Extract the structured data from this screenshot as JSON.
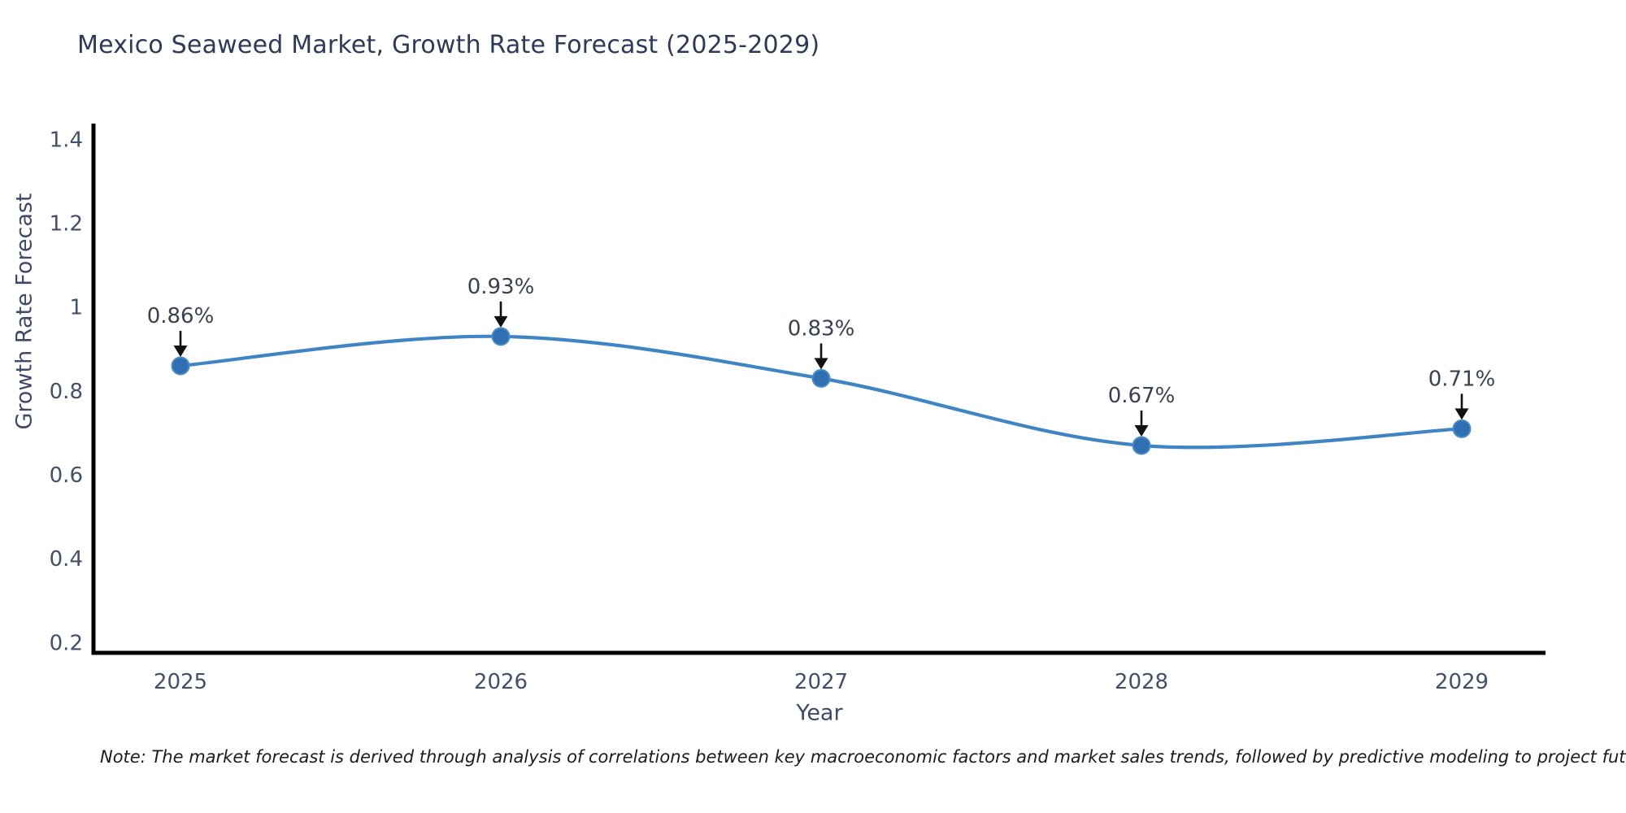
{
  "title": "Mexico Seaweed Market, Growth Rate Forecast (2025-2029)",
  "note": "Note: The market forecast is derived through analysis of correlations between key macroeconomic factors and market sales trends, followed by predictive modeling to project future sales",
  "chart_data": {
    "type": "line",
    "title": "Mexico Seaweed Market, Growth Rate Forecast (2025-2029)",
    "xlabel": "Year",
    "ylabel": "Growth Rate Forecast",
    "categories": [
      "2025",
      "2026",
      "2027",
      "2028",
      "2029"
    ],
    "values": [
      0.86,
      0.93,
      0.83,
      0.67,
      0.71
    ],
    "point_labels": [
      "0.86%",
      "0.93%",
      "0.83%",
      "0.67%",
      "0.71%"
    ],
    "ytick_labels": [
      "0.2",
      "0.4",
      "0.6",
      "0.8",
      "1",
      "1.2",
      "1.4"
    ],
    "ytick_values": [
      0.2,
      0.4,
      0.6,
      0.8,
      1.0,
      1.2,
      1.4
    ],
    "ylim": [
      0.172,
      1.432
    ],
    "grid": false,
    "smooth": true,
    "legend": null,
    "colors": {
      "line": "#3f85c4",
      "marker_fill": "#2f6fb2",
      "marker_edge": "#4a8dc6",
      "spine": "#000000",
      "title_text": "#2e3a59",
      "axis_label_text": "#3e4a66",
      "tick_text": "#43506a",
      "annotation_text": "#3a4252",
      "arrow": "#111111",
      "note_text": "#1c1c1c",
      "background": "#ffffff"
    }
  }
}
